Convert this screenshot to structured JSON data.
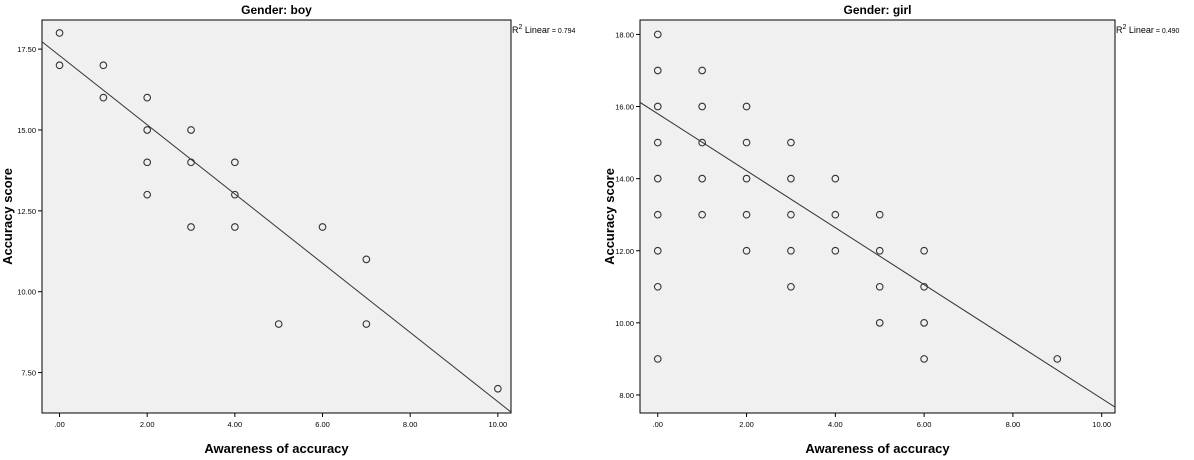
{
  "chart_data": [
    {
      "type": "scatter",
      "title": "Gender: boy",
      "xlabel": "Awareness of accuracy",
      "ylabel": "Accuracy score",
      "xlim": [
        -0.4,
        10.3
      ],
      "ylim": [
        6.25,
        18.4
      ],
      "xticks": [
        0,
        2,
        4,
        6,
        8,
        10
      ],
      "xtick_labels": [
        ".00",
        "2.00",
        "4.00",
        "6.00",
        "8.00",
        "10.00"
      ],
      "yticks": [
        7.5,
        10,
        12.5,
        15,
        17.5
      ],
      "ytick_labels": [
        "7.50",
        "10.00",
        "12.50",
        "15.00",
        "17.50"
      ],
      "fit_line": {
        "label": "Linear",
        "r2_label": "R",
        "r2_value": "0.794",
        "intercept": 17.3,
        "slope": -1.07
      },
      "points": [
        {
          "x": 0,
          "y": 18
        },
        {
          "x": 0,
          "y": 17
        },
        {
          "x": 1,
          "y": 17
        },
        {
          "x": 1,
          "y": 16
        },
        {
          "x": 2,
          "y": 16
        },
        {
          "x": 2,
          "y": 15
        },
        {
          "x": 2,
          "y": 14
        },
        {
          "x": 2,
          "y": 13
        },
        {
          "x": 3,
          "y": 15
        },
        {
          "x": 3,
          "y": 14
        },
        {
          "x": 3,
          "y": 12
        },
        {
          "x": 4,
          "y": 14
        },
        {
          "x": 4,
          "y": 13
        },
        {
          "x": 4,
          "y": 12
        },
        {
          "x": 5,
          "y": 9
        },
        {
          "x": 6,
          "y": 12
        },
        {
          "x": 7,
          "y": 11
        },
        {
          "x": 7,
          "y": 9
        },
        {
          "x": 10,
          "y": 7
        }
      ],
      "grid": false,
      "background": "#f0f0f0"
    },
    {
      "type": "scatter",
      "title": "Gender: girl",
      "xlabel": "Awareness of accuracy",
      "ylabel": "Accuracy score",
      "xlim": [
        -0.4,
        10.3
      ],
      "ylim": [
        7.5,
        18.4
      ],
      "xticks": [
        0,
        2,
        4,
        6,
        8,
        10
      ],
      "xtick_labels": [
        ".00",
        "2.00",
        "4.00",
        "6.00",
        "8.00",
        "10.00"
      ],
      "yticks": [
        8,
        10,
        12,
        14,
        16,
        18
      ],
      "ytick_labels": [
        "8.00",
        "10.00",
        "12.00",
        "14.00",
        "16.00",
        "18.00"
      ],
      "fit_line": {
        "label": "Linear",
        "r2_label": "R",
        "r2_value": "0.490",
        "intercept": 15.8,
        "slope": -0.79
      },
      "points": [
        {
          "x": 0,
          "y": 18
        },
        {
          "x": 0,
          "y": 17
        },
        {
          "x": 0,
          "y": 16
        },
        {
          "x": 0,
          "y": 15
        },
        {
          "x": 0,
          "y": 14
        },
        {
          "x": 0,
          "y": 13
        },
        {
          "x": 0,
          "y": 12
        },
        {
          "x": 0,
          "y": 11
        },
        {
          "x": 0,
          "y": 9
        },
        {
          "x": 1,
          "y": 17
        },
        {
          "x": 1,
          "y": 16
        },
        {
          "x": 1,
          "y": 15
        },
        {
          "x": 1,
          "y": 14
        },
        {
          "x": 1,
          "y": 13
        },
        {
          "x": 2,
          "y": 16
        },
        {
          "x": 2,
          "y": 15
        },
        {
          "x": 2,
          "y": 14
        },
        {
          "x": 2,
          "y": 13
        },
        {
          "x": 2,
          "y": 12
        },
        {
          "x": 3,
          "y": 15
        },
        {
          "x": 3,
          "y": 14
        },
        {
          "x": 3,
          "y": 13
        },
        {
          "x": 3,
          "y": 12
        },
        {
          "x": 3,
          "y": 11
        },
        {
          "x": 4,
          "y": 14
        },
        {
          "x": 4,
          "y": 13
        },
        {
          "x": 4,
          "y": 12
        },
        {
          "x": 5,
          "y": 13
        },
        {
          "x": 5,
          "y": 12
        },
        {
          "x": 5,
          "y": 11
        },
        {
          "x": 5,
          "y": 10
        },
        {
          "x": 6,
          "y": 12
        },
        {
          "x": 6,
          "y": 11
        },
        {
          "x": 6,
          "y": 10
        },
        {
          "x": 6,
          "y": 9
        },
        {
          "x": 9,
          "y": 9
        }
      ],
      "grid": false,
      "background": "#f0f0f0"
    }
  ]
}
